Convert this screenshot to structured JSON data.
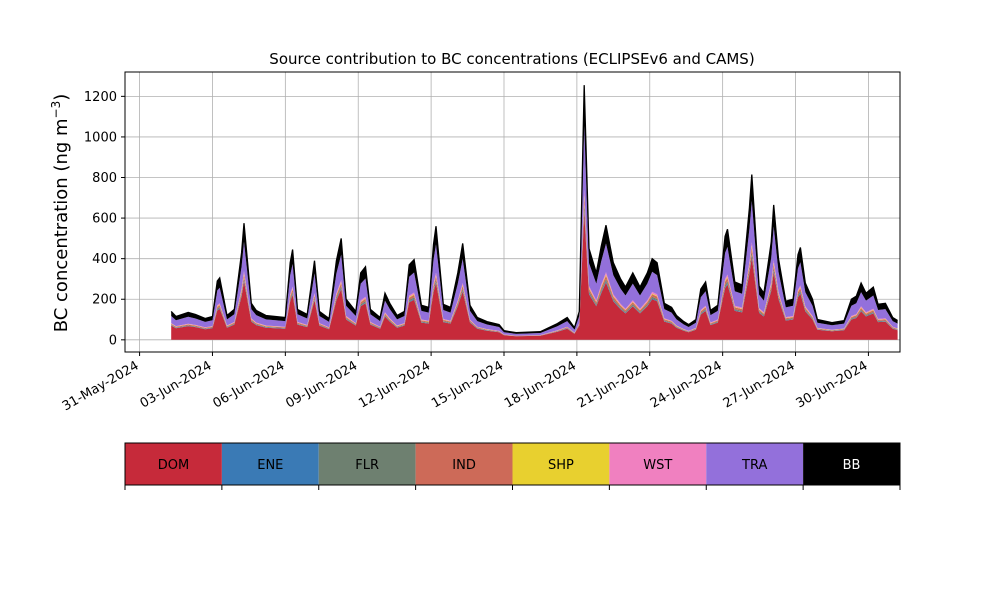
{
  "chart_data": {
    "type": "area",
    "stacked": true,
    "title": "Source contribution to BC concentrations (ECLIPSEv6 and CAMS)",
    "ylabel_main": "BC concentration (ng m",
    "ylabel_sup": "−3",
    "ylabel_close": ")",
    "xlabel": "",
    "ylim": [
      -60,
      1320
    ],
    "xlim": [
      -0.6,
      31.3
    ],
    "grid": true,
    "yticks": [
      0,
      200,
      400,
      600,
      800,
      1000,
      1200
    ],
    "yticklabels": [
      "0",
      "200",
      "400",
      "600",
      "800",
      "1000",
      "1200"
    ],
    "xticks": [
      0,
      3,
      6,
      9,
      12,
      15,
      18,
      21,
      24,
      27,
      30
    ],
    "xticklabels": [
      "31-May-2024",
      "03-Jun-2024",
      "06-Jun-2024",
      "09-Jun-2024",
      "12-Jun-2024",
      "15-Jun-2024",
      "18-Jun-2024",
      "21-Jun-2024",
      "24-Jun-2024",
      "27-Jun-2024",
      "30-Jun-2024"
    ],
    "x_unit": "days since 31-May-2024",
    "total_profile": [
      [
        1.3,
        140
      ],
      [
        1.5,
        115
      ],
      [
        2.0,
        135
      ],
      [
        2.3,
        125
      ],
      [
        2.7,
        105
      ],
      [
        3.0,
        115
      ],
      [
        3.2,
        290
      ],
      [
        3.3,
        305
      ],
      [
        3.6,
        120
      ],
      [
        3.9,
        150
      ],
      [
        4.2,
        430
      ],
      [
        4.3,
        575
      ],
      [
        4.6,
        180
      ],
      [
        4.8,
        145
      ],
      [
        5.2,
        120
      ],
      [
        6.0,
        110
      ],
      [
        6.2,
        380
      ],
      [
        6.3,
        445
      ],
      [
        6.5,
        150
      ],
      [
        6.9,
        125
      ],
      [
        7.1,
        300
      ],
      [
        7.2,
        390
      ],
      [
        7.4,
        140
      ],
      [
        7.8,
        105
      ],
      [
        8.1,
        390
      ],
      [
        8.3,
        500
      ],
      [
        8.5,
        200
      ],
      [
        8.9,
        140
      ],
      [
        9.1,
        330
      ],
      [
        9.3,
        360
      ],
      [
        9.5,
        150
      ],
      [
        9.9,
        110
      ],
      [
        10.1,
        230
      ],
      [
        10.3,
        180
      ],
      [
        10.6,
        120
      ],
      [
        10.9,
        140
      ],
      [
        11.1,
        370
      ],
      [
        11.3,
        395
      ],
      [
        11.6,
        170
      ],
      [
        11.9,
        160
      ],
      [
        12.1,
        470
      ],
      [
        12.2,
        560
      ],
      [
        12.5,
        175
      ],
      [
        12.8,
        160
      ],
      [
        13.1,
        330
      ],
      [
        13.3,
        475
      ],
      [
        13.6,
        170
      ],
      [
        13.9,
        110
      ],
      [
        14.3,
        90
      ],
      [
        14.8,
        75
      ],
      [
        15.0,
        45
      ],
      [
        15.5,
        35
      ],
      [
        16.5,
        40
      ],
      [
        17.2,
        80
      ],
      [
        17.6,
        110
      ],
      [
        17.9,
        60
      ],
      [
        18.1,
        140
      ],
      [
        18.3,
        1255
      ],
      [
        18.5,
        450
      ],
      [
        18.8,
        330
      ],
      [
        19.0,
        460
      ],
      [
        19.2,
        565
      ],
      [
        19.5,
        380
      ],
      [
        19.8,
        300
      ],
      [
        20.0,
        260
      ],
      [
        20.3,
        330
      ],
      [
        20.6,
        260
      ],
      [
        20.9,
        330
      ],
      [
        21.1,
        400
      ],
      [
        21.3,
        380
      ],
      [
        21.6,
        180
      ],
      [
        21.9,
        160
      ],
      [
        22.1,
        120
      ],
      [
        22.4,
        90
      ],
      [
        22.6,
        75
      ],
      [
        22.9,
        100
      ],
      [
        23.1,
        250
      ],
      [
        23.3,
        285
      ],
      [
        23.5,
        145
      ],
      [
        23.8,
        170
      ],
      [
        24.1,
        510
      ],
      [
        24.2,
        545
      ],
      [
        24.5,
        285
      ],
      [
        24.8,
        270
      ],
      [
        25.1,
        650
      ],
      [
        25.2,
        815
      ],
      [
        25.5,
        265
      ],
      [
        25.7,
        230
      ],
      [
        26.0,
        480
      ],
      [
        26.1,
        665
      ],
      [
        26.3,
        400
      ],
      [
        26.6,
        190
      ],
      [
        26.9,
        200
      ],
      [
        27.1,
        420
      ],
      [
        27.2,
        455
      ],
      [
        27.4,
        280
      ],
      [
        27.7,
        200
      ],
      [
        27.9,
        100
      ],
      [
        28.5,
        85
      ],
      [
        29.0,
        95
      ],
      [
        29.3,
        200
      ],
      [
        29.5,
        215
      ],
      [
        29.7,
        280
      ],
      [
        29.9,
        230
      ],
      [
        30.2,
        260
      ],
      [
        30.4,
        175
      ],
      [
        30.7,
        180
      ],
      [
        31.0,
        110
      ],
      [
        31.2,
        95
      ]
    ],
    "series": [
      {
        "name": "DOM",
        "color": "#c62a3a",
        "fraction": 0.5
      },
      {
        "name": "ENE",
        "color": "#3a7ab5",
        "fraction": 0.01
      },
      {
        "name": "FLR",
        "color": "#6e8070",
        "fraction": 0.02
      },
      {
        "name": "IND",
        "color": "#cd6a58",
        "fraction": 0.03
      },
      {
        "name": "SHP",
        "color": "#e8d02f",
        "fraction": 0.01
      },
      {
        "name": "WST",
        "color": "#f080c0",
        "fraction": 0.02
      },
      {
        "name": "TRA",
        "color": "#9370db",
        "fraction": 0.25
      },
      {
        "name": "BB",
        "color": "#000000",
        "fraction": 0.16
      }
    ],
    "legend": {
      "placement": "bottom",
      "items": [
        {
          "label": "DOM",
          "color": "#c62a3a",
          "text_color": "#000000"
        },
        {
          "label": "ENE",
          "color": "#3a7ab5",
          "text_color": "#000000"
        },
        {
          "label": "FLR",
          "color": "#6e8070",
          "text_color": "#000000"
        },
        {
          "label": "IND",
          "color": "#cd6a58",
          "text_color": "#000000"
        },
        {
          "label": "SHP",
          "color": "#e8d02f",
          "text_color": "#000000"
        },
        {
          "label": "WST",
          "color": "#f080c0",
          "text_color": "#000000"
        },
        {
          "label": "TRA",
          "color": "#9370db",
          "text_color": "#000000"
        },
        {
          "label": "BB",
          "color": "#000000",
          "text_color": "#ffffff"
        }
      ]
    }
  }
}
